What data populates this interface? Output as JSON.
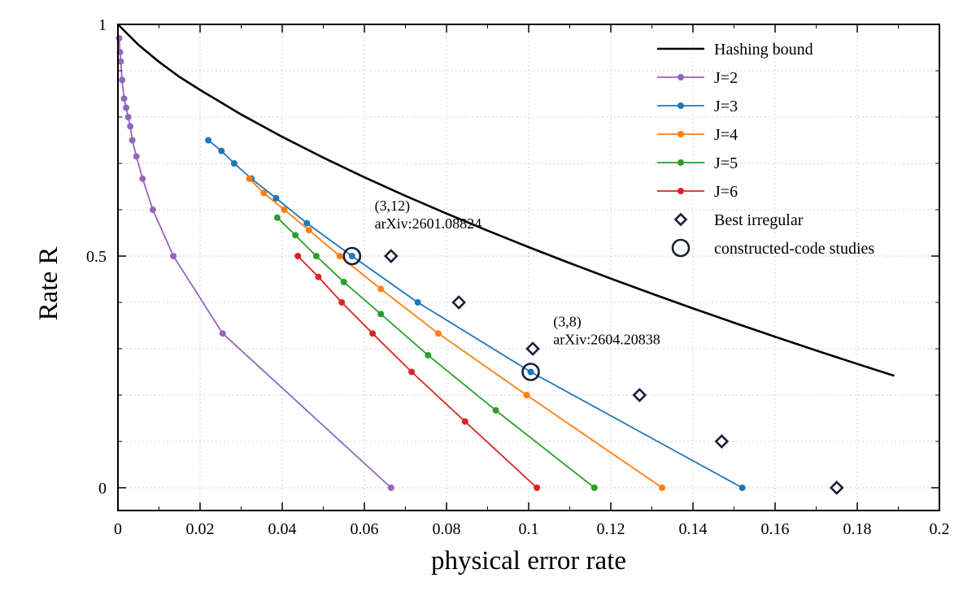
{
  "chart_data": {
    "type": "line",
    "xlabel": "physical error rate",
    "ylabel": "Rate R",
    "xlim": [
      0,
      0.2
    ],
    "ylim": [
      -0.05,
      1
    ],
    "x_ticks": [
      "0",
      "0.02",
      "0.04",
      "0.06",
      "0.08",
      "0.1",
      "0.12",
      "0.14",
      "0.16",
      "0.18",
      "0.2"
    ],
    "y_ticks": [
      "0",
      "0.5",
      "1"
    ],
    "grid": true,
    "legend_position": "top-right",
    "series": [
      {
        "name": "Hashing bound",
        "color": "#000000",
        "style": "line",
        "points": [
          [
            0,
            1
          ],
          [
            0.005,
            0.9558
          ],
          [
            0.01,
            0.9192
          ],
          [
            0.015,
            0.8866
          ],
          [
            0.02,
            0.8586
          ],
          [
            0.03,
            0.8056
          ],
          [
            0.04,
            0.7573
          ],
          [
            0.05,
            0.7124
          ],
          [
            0.06,
            0.6701
          ],
          [
            0.07,
            0.63
          ],
          [
            0.08,
            0.5917
          ],
          [
            0.09,
            0.5549
          ],
          [
            0.1,
            0.5193
          ],
          [
            0.11,
            0.4849
          ],
          [
            0.12,
            0.4514
          ],
          [
            0.13,
            0.4189
          ],
          [
            0.14,
            0.3871
          ],
          [
            0.15,
            0.3561
          ],
          [
            0.16,
            0.3258
          ],
          [
            0.17,
            0.2962
          ],
          [
            0.18,
            0.2672
          ],
          [
            0.189,
            0.2416
          ]
        ]
      },
      {
        "name": "J=2",
        "color": "#9467bd",
        "style": "line-marker",
        "points": [
          [
            0.0003,
            0.97
          ],
          [
            0.0005,
            0.94
          ],
          [
            0.0007,
            0.92
          ],
          [
            0.001,
            0.88
          ],
          [
            0.0015,
            0.84
          ],
          [
            0.002,
            0.82
          ],
          [
            0.0025,
            0.8
          ],
          [
            0.003,
            0.78
          ],
          [
            0.0035,
            0.75
          ],
          [
            0.0045,
            0.715
          ],
          [
            0.006,
            0.667
          ],
          [
            0.0085,
            0.6
          ],
          [
            0.0135,
            0.5
          ],
          [
            0.0255,
            0.333
          ],
          [
            0.0665,
            0.0
          ]
        ]
      },
      {
        "name": "J=3",
        "color": "#1f77b4",
        "style": "line-marker",
        "points": [
          [
            0.022,
            0.75
          ],
          [
            0.0252,
            0.727
          ],
          [
            0.0283,
            0.7
          ],
          [
            0.0325,
            0.667
          ],
          [
            0.0385,
            0.625
          ],
          [
            0.046,
            0.571
          ],
          [
            0.057,
            0.5
          ],
          [
            0.073,
            0.4
          ],
          [
            0.1005,
            0.25
          ],
          [
            0.152,
            0.0
          ]
        ]
      },
      {
        "name": "J=4",
        "color": "#ff7f0e",
        "style": "line-marker",
        "points": [
          [
            0.032,
            0.667
          ],
          [
            0.0355,
            0.636
          ],
          [
            0.0405,
            0.6
          ],
          [
            0.0465,
            0.556
          ],
          [
            0.054,
            0.5
          ],
          [
            0.064,
            0.429
          ],
          [
            0.078,
            0.333
          ],
          [
            0.0995,
            0.2
          ],
          [
            0.1325,
            0.0
          ]
        ]
      },
      {
        "name": "J=5",
        "color": "#2ca02c",
        "style": "line-marker",
        "points": [
          [
            0.0388,
            0.583
          ],
          [
            0.0432,
            0.545
          ],
          [
            0.0483,
            0.5
          ],
          [
            0.055,
            0.444
          ],
          [
            0.064,
            0.375
          ],
          [
            0.0755,
            0.286
          ],
          [
            0.092,
            0.167
          ],
          [
            0.116,
            0.0
          ]
        ]
      },
      {
        "name": "J=6",
        "color": "#d62728",
        "style": "line-marker",
        "points": [
          [
            0.0438,
            0.5
          ],
          [
            0.0488,
            0.455
          ],
          [
            0.0545,
            0.4
          ],
          [
            0.062,
            0.333
          ],
          [
            0.0715,
            0.25
          ],
          [
            0.0845,
            0.143
          ],
          [
            0.102,
            0.0
          ]
        ]
      },
      {
        "name": "Best irregular",
        "color": "#1a1f36",
        "style": "diamond",
        "points": [
          [
            0.0665,
            0.5
          ],
          [
            0.083,
            0.4
          ],
          [
            0.101,
            0.3
          ],
          [
            0.127,
            0.2
          ],
          [
            0.147,
            0.1
          ],
          [
            0.175,
            0.0
          ]
        ]
      },
      {
        "name": "constructed-code studies",
        "color": "#1a1f36",
        "style": "circle",
        "points": [
          [
            0.057,
            0.5
          ],
          [
            0.1005,
            0.25
          ]
        ]
      }
    ],
    "annotations": [
      {
        "lines": [
          "(3,12)",
          "arXiv:2601.08824"
        ],
        "x": 0.0625,
        "y": 0.56
      },
      {
        "lines": [
          "(3,8)",
          "arXiv:2604.20838"
        ],
        "x": 0.106,
        "y": 0.31
      }
    ]
  }
}
